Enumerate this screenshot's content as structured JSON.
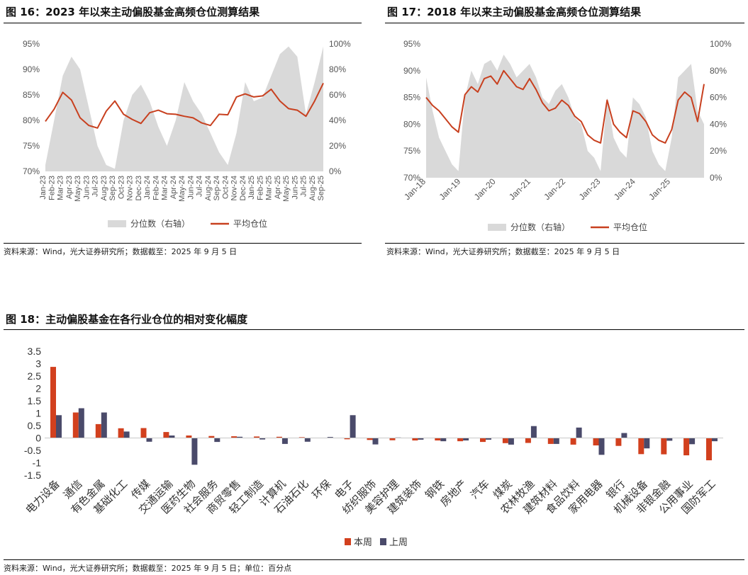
{
  "figure16": {
    "title": "图 16：2023 年以来主动偏股基金高频仓位测算结果",
    "source": "资料来源：Wind，光大证券研究所；数据截至：2025 年 9 月 5 日"
  },
  "figure17": {
    "title": "图 17：2018 年以来主动偏股基金高频仓位测算结果",
    "source": "资料来源：Wind，光大证券研究所；数据截至：2025 年 9 月 5 日"
  },
  "figure18": {
    "title": "图 18：主动偏股基金在各行业仓位的相对变化幅度",
    "source": "资料来源：Wind，光大证券研究所；数据截至：2025 年 9 月 5 日；单位：百分点"
  },
  "colors": {
    "area": "#d9d9d9",
    "line": "#c8401f",
    "this_week": "#d2401e",
    "last_week": "#4a4a6a"
  },
  "chart_data": [
    {
      "type": "area",
      "x_ticks": [
        "Jan-23",
        "Feb-23",
        "Mar-23",
        "Apr-23",
        "May-23",
        "Jun-23",
        "Jul-23",
        "Aug-23",
        "Sep-23",
        "Oct-23",
        "Nov-23",
        "Dec-23",
        "Jan-24",
        "Feb-24",
        "Mar-24",
        "Apr-24",
        "May-24",
        "Jun-24",
        "Jul-24",
        "Aug-24",
        "Sep-24",
        "Oct-24",
        "Nov-24",
        "Dec-24",
        "Jan-25",
        "Feb-25",
        "Mar-25",
        "Apr-25",
        "May-25",
        "Jun-25",
        "Jul-25",
        "Aug-25",
        "Sep-25"
      ],
      "y_left_ticks": [
        "70%",
        "75%",
        "80%",
        "85%",
        "90%",
        "95%"
      ],
      "y_left_range": [
        70,
        95
      ],
      "y_right_ticks": [
        "0%",
        "20%",
        "40%",
        "60%",
        "80%",
        "100%"
      ],
      "y_right_range": [
        0,
        100
      ],
      "legend": [
        "分位数（右轴）",
        "平均仓位"
      ],
      "series": [
        {
          "name": "分位数（右轴）",
          "axis": "right",
          "type": "area",
          "values": [
            5,
            40,
            75,
            90,
            80,
            50,
            20,
            5,
            2,
            40,
            60,
            68,
            55,
            35,
            20,
            40,
            70,
            55,
            45,
            30,
            15,
            5,
            30,
            70,
            55,
            58,
            75,
            92,
            98,
            90,
            45,
            70,
            98
          ]
        },
        {
          "name": "平均仓位",
          "axis": "left",
          "type": "line",
          "values": [
            79.8,
            82.2,
            85.5,
            84.0,
            80.5,
            79.0,
            78.5,
            81.8,
            83.8,
            81.2,
            80.2,
            79.4,
            81.5,
            82.0,
            81.3,
            81.2,
            80.8,
            80.5,
            79.5,
            79.0,
            81.2,
            81.1,
            84.6,
            85.2,
            84.6,
            84.8,
            86.1,
            83.8,
            82.3,
            82.0,
            80.8,
            83.8,
            87.3
          ]
        }
      ]
    },
    {
      "type": "area",
      "x_ticks": [
        "Jan-18",
        "Jan-19",
        "Jan-20",
        "Jan-21",
        "Jan-22",
        "Jan-23",
        "Jan-24",
        "Jan-25"
      ],
      "y_left_ticks": [
        "70%",
        "75%",
        "80%",
        "85%",
        "90%",
        "95%"
      ],
      "y_left_range": [
        70,
        95
      ],
      "y_right_ticks": [
        "0%",
        "20%",
        "40%",
        "60%",
        "80%",
        "100%"
      ],
      "y_right_range": [
        0,
        100
      ],
      "legend": [
        "分位数（右轴）",
        "平均仓位"
      ],
      "series": [
        {
          "name": "分位数（右轴）",
          "axis": "right",
          "type": "area",
          "values": [
            75,
            50,
            30,
            20,
            10,
            5,
            60,
            80,
            70,
            85,
            88,
            80,
            92,
            85,
            75,
            80,
            85,
            75,
            60,
            55,
            65,
            70,
            60,
            45,
            40,
            20,
            15,
            5,
            60,
            30,
            20,
            15,
            60,
            55,
            45,
            20,
            10,
            5,
            30,
            75,
            80,
            85,
            50,
            40
          ]
        },
        {
          "name": "平均仓位",
          "axis": "left",
          "type": "line",
          "values": [
            85.0,
            83.5,
            82.5,
            81.0,
            79.5,
            78.5,
            85.5,
            87.0,
            86.0,
            88.5,
            89.0,
            87.5,
            90.0,
            88.5,
            87.0,
            86.5,
            88.5,
            86.5,
            84.0,
            82.5,
            83.0,
            84.5,
            83.5,
            81.5,
            80.5,
            78.0,
            77.0,
            76.5,
            84.5,
            80.0,
            78.5,
            77.5,
            82.5,
            82.0,
            80.5,
            78.0,
            77.0,
            76.5,
            79.0,
            84.5,
            86.0,
            85.0,
            80.5,
            87.5
          ]
        }
      ]
    },
    {
      "type": "bar",
      "categories": [
        "电力设备",
        "通信",
        "有色金属",
        "基础化工",
        "传媒",
        "交通运输",
        "医药生物",
        "社会服务",
        "商贸零售",
        "轻工制造",
        "计算机",
        "石油石化",
        "环保",
        "电子",
        "纺织服饰",
        "美容护理",
        "建筑装饰",
        "钢铁",
        "房地产",
        "汽车",
        "煤炭",
        "农林牧渔",
        "建筑材料",
        "食品饮料",
        "家用电器",
        "银行",
        "机械设备",
        "非银金融",
        "公用事业",
        "国防军工"
      ],
      "y_ticks": [
        "-1.5",
        "-1",
        "-0.5",
        "0",
        "0.5",
        "1",
        "1.5",
        "2",
        "2.5",
        "3",
        "3.5"
      ],
      "ylim": [
        -1.5,
        3.5
      ],
      "legend": [
        "本周",
        "上周"
      ],
      "series": [
        {
          "name": "本周",
          "values": [
            2.87,
            1.03,
            0.56,
            0.39,
            0.4,
            0.24,
            0.1,
            0.08,
            0.07,
            0.06,
            0.05,
            0.03,
            0.01,
            -0.05,
            -0.08,
            -0.09,
            -0.1,
            -0.1,
            -0.13,
            -0.16,
            -0.21,
            -0.2,
            -0.24,
            -0.27,
            -0.3,
            -0.32,
            -0.65,
            -0.66,
            -0.7,
            -0.9
          ]
        },
        {
          "name": "上周",
          "values": [
            0.92,
            1.2,
            1.03,
            0.26,
            -0.15,
            0.1,
            -1.08,
            -0.16,
            0.05,
            -0.06,
            -0.24,
            -0.15,
            0.04,
            0.92,
            -0.26,
            0.02,
            -0.07,
            -0.13,
            -0.1,
            -0.07,
            -0.27,
            0.48,
            -0.24,
            0.42,
            -0.68,
            0.2,
            -0.42,
            -0.11,
            -0.25,
            -0.13
          ]
        }
      ]
    }
  ]
}
